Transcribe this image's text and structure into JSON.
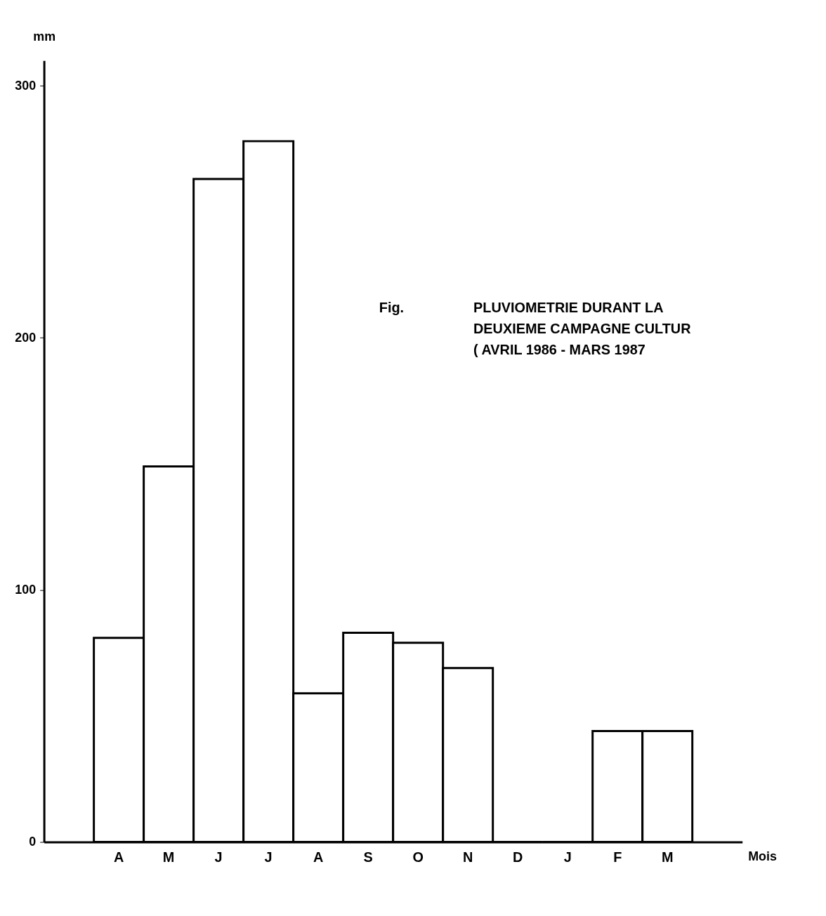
{
  "chart_data": {
    "type": "bar",
    "title": "PLUVIOMETRIE DURANT LA\nDEUXIEME CAMPAGNE CULTUR\n( AVRIL 1986 - MARS 1987",
    "annotations": [
      "Fig."
    ],
    "xlabel": "Mois",
    "ylabel": "mm",
    "categories": [
      "A",
      "M",
      "J",
      "J",
      "A",
      "S",
      "O",
      "N",
      "D",
      "J",
      "F",
      "M"
    ],
    "values": [
      81,
      149,
      263,
      278,
      59,
      83,
      79,
      69,
      0,
      0,
      44,
      44
    ],
    "color": "#ffffff",
    "ylim": [
      0,
      310
    ],
    "yticks": [
      0,
      100,
      200,
      300
    ],
    "grid": false
  }
}
